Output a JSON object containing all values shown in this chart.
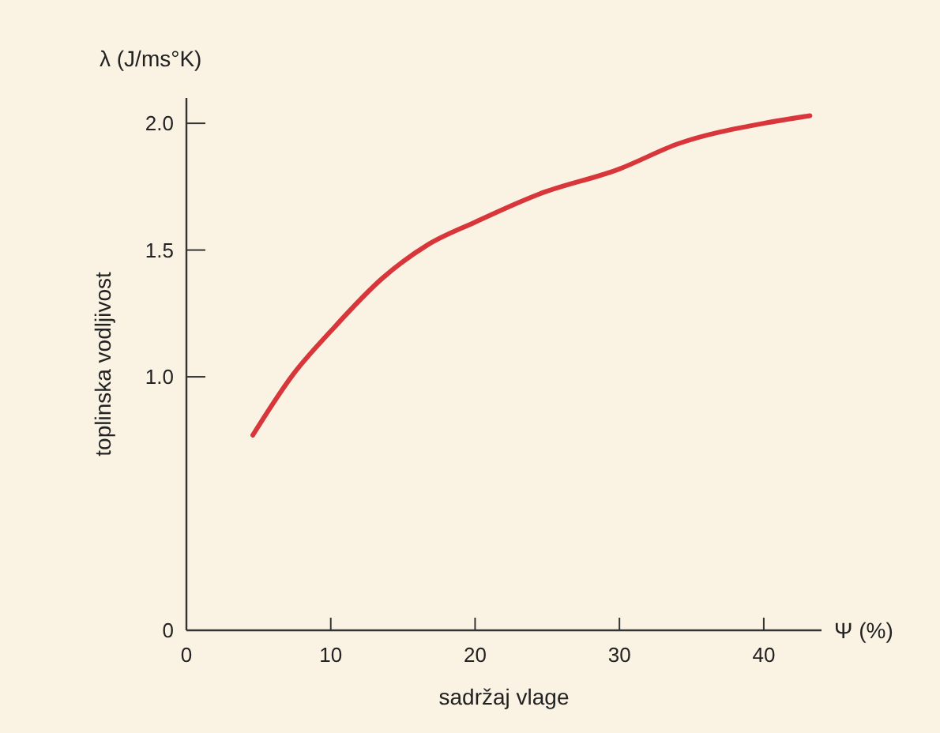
{
  "chart_data": {
    "type": "line",
    "xlabel": "sadržaj vlage",
    "ylabel": "toplinska vodljivost",
    "annotations": [
      "λ (J/ms°K)",
      "Ψ (%)"
    ],
    "x": [
      4.6,
      7.4,
      10,
      13.6,
      16.7,
      20,
      24.4,
      30,
      34.1,
      40,
      43.2
    ],
    "series": [
      {
        "color": "#d8363a",
        "values": [
          0.77,
          1.01,
          1.18,
          1.39,
          1.52,
          1.61,
          1.72,
          1.82,
          1.92,
          2.0,
          2.03
        ]
      }
    ],
    "xlim": [
      0,
      44
    ],
    "ylim": [
      0,
      2.1
    ],
    "xticks": [
      0,
      10,
      20,
      30,
      40
    ],
    "yticks": [
      0,
      {
        "value": 1,
        "label": "1.0"
      },
      {
        "value": 1.5,
        "label": "1.5"
      },
      {
        "value": 2,
        "label": "2.0"
      }
    ],
    "grid": false,
    "marker": "none",
    "line_style": "solid"
  }
}
